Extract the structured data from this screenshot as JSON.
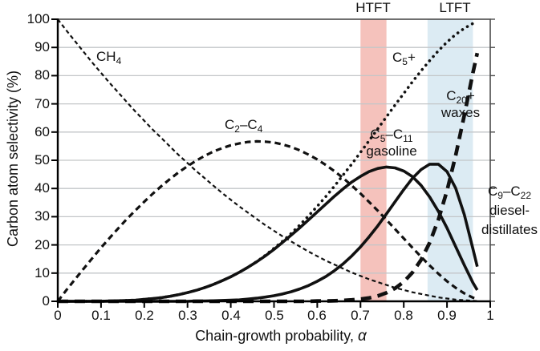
{
  "chart_data": {
    "type": "line",
    "title": "",
    "xlabel": "Chain-growth probability, α",
    "ylabel": "Carbon atom selectivity (%)",
    "xlim": [
      0,
      1
    ],
    "ylim": [
      0,
      100
    ],
    "grid": "horizontal-only",
    "legend": "inline-curve-labels",
    "xticks": [
      0,
      0.1,
      0.2,
      0.3,
      0.4,
      0.5,
      0.6,
      0.7,
      0.8,
      0.9,
      1
    ],
    "xtick_labels": [
      "0",
      "0.1",
      "0.2",
      "0.3",
      "0.4",
      "0.5",
      "0.6",
      "0.7",
      "0.8",
      "0.9",
      "1"
    ],
    "yticks": [
      0,
      10,
      20,
      30,
      40,
      50,
      60,
      70,
      80,
      90,
      100
    ],
    "ytick_labels": [
      "0",
      "10",
      "20",
      "30",
      "40",
      "50",
      "60",
      "70",
      "80",
      "90",
      "100"
    ],
    "x": [
      0,
      0.02,
      0.04,
      0.06,
      0.08,
      0.1,
      0.12,
      0.14,
      0.16,
      0.18,
      0.2,
      0.22,
      0.24,
      0.26,
      0.28,
      0.3,
      0.32,
      0.34,
      0.36,
      0.38,
      0.4,
      0.42,
      0.44,
      0.46,
      0.48,
      0.5,
      0.52,
      0.54,
      0.56,
      0.58,
      0.6,
      0.62,
      0.64,
      0.66,
      0.68,
      0.7,
      0.72,
      0.74,
      0.76,
      0.78,
      0.8,
      0.82,
      0.84,
      0.86,
      0.88,
      0.9,
      0.92,
      0.94,
      0.96,
      0.97
    ],
    "series": [
      {
        "name": "CH4",
        "style": "short-dash",
        "width": 2.2,
        "values": [
          100,
          96,
          92.2,
          88.4,
          84.6,
          81,
          77.4,
          74,
          70.6,
          67.2,
          64,
          60.8,
          57.8,
          54.8,
          51.8,
          49,
          46.2,
          43.6,
          41,
          38.4,
          36,
          33.6,
          31.4,
          29.2,
          27,
          25,
          23,
          21.2,
          19.4,
          17.6,
          16,
          14.4,
          13,
          11.6,
          10.2,
          9,
          7.8,
          6.8,
          5.8,
          4.8,
          4,
          3.2,
          2.6,
          2,
          1.4,
          1,
          0.6,
          0.4,
          0.2,
          0.1
        ]
      },
      {
        "name": "C2-C4",
        "style": "dash",
        "width": 3.2,
        "values": [
          0,
          4,
          7.8,
          11.6,
          15.3,
          19,
          22.5,
          25.9,
          29.2,
          32.3,
          35.3,
          38.2,
          40.9,
          43.4,
          45.8,
          47.9,
          49.9,
          51.6,
          53.1,
          54.3,
          55.3,
          56,
          56.5,
          56.7,
          56.6,
          56.3,
          55.6,
          54.7,
          53.5,
          52,
          50.3,
          48.3,
          46.1,
          43.7,
          41,
          38.2,
          35.2,
          32.1,
          28.9,
          25.6,
          22.3,
          19,
          15.8,
          12.7,
          9.8,
          7.1,
          4.8,
          2.8,
          1.3,
          0.8
        ]
      },
      {
        "name": "C5-C11 gasoline",
        "style": "solid",
        "width": 3.6,
        "values": [
          0,
          0,
          0,
          0,
          0,
          0,
          0.1,
          0.2,
          0.3,
          0.4,
          0.7,
          1,
          1.3,
          1.8,
          2.4,
          3.1,
          3.9,
          4.9,
          6,
          7.3,
          8.7,
          10.3,
          12.1,
          14,
          16.1,
          18.4,
          20.9,
          23.5,
          26.1,
          28.9,
          31.7,
          34.5,
          37.3,
          39.9,
          42.3,
          44.3,
          46,
          47.1,
          47.6,
          47.3,
          46.2,
          44.2,
          41.1,
          37,
          31.9,
          26,
          19.4,
          12.8,
          6.6,
          4
        ]
      },
      {
        "name": "C9-C22 diesel-distillates",
        "style": "solid",
        "width": 3.6,
        "values": [
          0,
          0,
          0,
          0,
          0,
          0,
          0,
          0,
          0,
          0,
          0,
          0,
          0,
          0,
          0,
          0,
          0.1,
          0.1,
          0.2,
          0.3,
          0.4,
          0.5,
          0.8,
          1.1,
          1.5,
          2,
          2.6,
          3.4,
          4.4,
          5.6,
          7.1,
          8.8,
          10.9,
          13.3,
          16.1,
          19.3,
          22.9,
          26.8,
          31,
          35.3,
          39.6,
          43.6,
          46.7,
          48.6,
          48.6,
          46,
          40.1,
          30.7,
          18.6,
          12.3
        ]
      },
      {
        "name": "C20+ waxes",
        "style": "long-dash",
        "width": 4.6,
        "values": [
          0,
          0,
          0,
          0,
          0,
          0,
          0,
          0,
          0,
          0,
          0,
          0,
          0,
          0,
          0,
          0,
          0,
          0,
          0,
          0,
          0,
          0,
          0,
          0,
          0,
          0,
          0,
          0,
          0,
          0,
          0.1,
          0.1,
          0.2,
          0.3,
          0.5,
          0.8,
          1.2,
          1.9,
          3,
          4.6,
          6.9,
          10.2,
          14.7,
          20.8,
          28.9,
          39.2,
          51.7,
          66,
          81,
          88
        ]
      },
      {
        "name": "C5+",
        "style": "dotted",
        "width": 3.6,
        "values": [
          0,
          0,
          0,
          0,
          0,
          0,
          0.1,
          0.2,
          0.3,
          0.4,
          0.7,
          1,
          1.3,
          1.8,
          2.4,
          3.1,
          3.9,
          4.9,
          6,
          7.3,
          8.7,
          10.3,
          12.1,
          14.1,
          16.3,
          18.8,
          21.3,
          24.1,
          27.1,
          30.3,
          33.7,
          37.2,
          40.9,
          44.8,
          48.7,
          52.8,
          57,
          61.2,
          65.4,
          69.6,
          73.7,
          77.8,
          81.7,
          85.3,
          88.8,
          91.9,
          94.6,
          96.8,
          98.5,
          99.2
        ]
      }
    ],
    "bands": [
      {
        "label": "HTFT",
        "x0": 0.7,
        "x1": 0.76,
        "color": "#f5c2bc"
      },
      {
        "label": "LTFT",
        "x0": 0.855,
        "x1": 0.96,
        "color": "#dcebf3"
      }
    ],
    "colors": {
      "curve": "#111111",
      "gridline": "#c3c6c8",
      "frame": "#4b4b4b",
      "axis": "#000000"
    },
    "labels": {
      "ch4": {
        "p1": "CH",
        "s1": "4"
      },
      "c2c4": {
        "p1": "C",
        "s1": "2",
        "p2": "–C",
        "s2": "4"
      },
      "c5plus": {
        "p1": "C",
        "s1": "5",
        "p2": "+"
      },
      "c5c11": {
        "p1": "C",
        "s1": "5",
        "p2": "–C",
        "s2": "11",
        "line2": "gasoline"
      },
      "c20plus": {
        "p1": "C",
        "s1": "20",
        "p2": "+",
        "line2": "waxes"
      },
      "c9c22": {
        "p1": "C",
        "s1": "9",
        "p2": "–C",
        "s2": "22",
        "line2": "diesel-",
        "line3": "distillates"
      }
    },
    "axis_titles": {
      "x_main": "Chain-growth probability,",
      "x_symbol": "α",
      "y": "Carbon atom selectivity (%)"
    }
  }
}
